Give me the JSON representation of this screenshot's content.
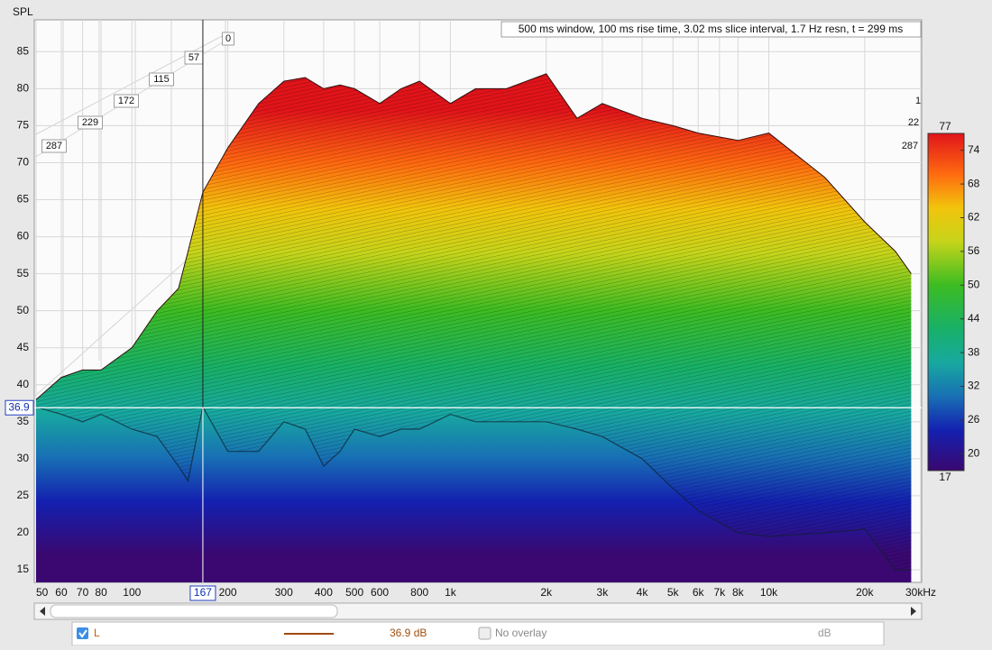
{
  "chart_data": {
    "type": "waterfall",
    "title": "500 ms window, 100 ms rise time, 3.02 ms slice interval, 1.7 Hz resn, t = 299 ms",
    "ylabel": "SPL",
    "xlim": [
      50,
      30000
    ],
    "log_x": true,
    "ylim": [
      13.3,
      89.3
    ],
    "yticks": [
      15,
      20,
      25,
      30,
      35,
      40,
      45,
      50,
      55,
      60,
      65,
      70,
      75,
      80,
      85
    ],
    "xticks": [
      50,
      60,
      70,
      80,
      100,
      200,
      300,
      400,
      500,
      600,
      800,
      {
        "value": 1000,
        "label": "1k"
      },
      {
        "value": 2000,
        "label": "2k"
      },
      {
        "value": 3000,
        "label": "3k"
      },
      {
        "value": 4000,
        "label": "4k"
      },
      {
        "value": 5000,
        "label": "5k"
      },
      {
        "value": 6000,
        "label": "6k"
      },
      {
        "value": 7000,
        "label": "7k"
      },
      {
        "value": 8000,
        "label": "8k"
      },
      {
        "value": 10000,
        "label": "10k"
      },
      {
        "value": 20000,
        "label": "20k"
      },
      {
        "value": 30000,
        "label": "30kHz"
      }
    ],
    "zticks": [
      287,
      229,
      172,
      115,
      57,
      0
    ],
    "zticks_right": [
      "287",
      "22",
      "1"
    ],
    "x": [
      50,
      60,
      70,
      80,
      100,
      120,
      140,
      150,
      167,
      200,
      250,
      300,
      350,
      400,
      450,
      500,
      600,
      700,
      800,
      1000,
      1200,
      1500,
      2000,
      2500,
      3000,
      4000,
      5000,
      6000,
      8000,
      10000,
      15000,
      20000,
      25000,
      28000
    ],
    "envelope": [
      38,
      41,
      42,
      42,
      45,
      50,
      53,
      58,
      66,
      72,
      78,
      81,
      81.5,
      80,
      80.5,
      80,
      78,
      80,
      81,
      78,
      80,
      80,
      82,
      76,
      78,
      76,
      75,
      74,
      73,
      74,
      68,
      62,
      58,
      55
    ],
    "floor": [
      37,
      36,
      35,
      36,
      34,
      33,
      29,
      27,
      37,
      31,
      31,
      35,
      34,
      29,
      31,
      34,
      33,
      34,
      34,
      36,
      35,
      35,
      35,
      34,
      33,
      30,
      26,
      23,
      20,
      19.5,
      20,
      20.5,
      15,
      15
    ],
    "cursor": {
      "x": 167,
      "y": 36.9
    },
    "colorbar": {
      "lim": [
        17,
        77
      ],
      "ticks": [
        20,
        26,
        32,
        38,
        44,
        50,
        56,
        62,
        68,
        74
      ]
    },
    "bottom_bar": {
      "channel": "L",
      "value": "36.9 dB",
      "overlay": "No overlay",
      "unit": "dB"
    }
  }
}
